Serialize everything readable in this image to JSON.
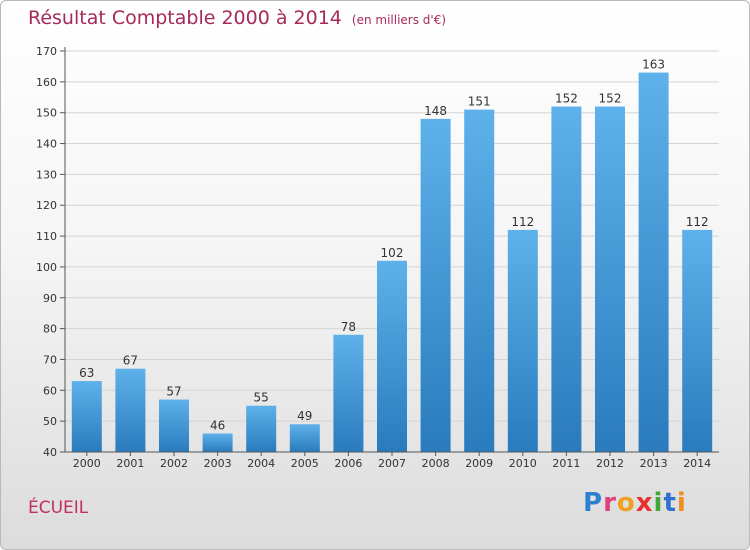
{
  "title": "Résultat Comptable 2000 à 2014",
  "subtitle": "(en milliers d'€)",
  "commune": "ÉCUEIL",
  "logo": {
    "letters": [
      "P",
      "r",
      "o",
      "x",
      "i",
      "t",
      "i"
    ],
    "colors": [
      "#2f7fd0",
      "#e0407a",
      "#f0a020",
      "#e83030",
      "#40a838",
      "#3070d0",
      "#f08c20"
    ]
  },
  "colors": {
    "bar_top": "#5eb1ea",
    "bar_bottom": "#2a7bbd",
    "grid": "#d4d4d4"
  },
  "chart_data": {
    "type": "bar",
    "title": "Résultat Comptable 2000 à 2014",
    "xlabel": "",
    "ylabel": "",
    "ylim": [
      40,
      170
    ],
    "yticks": [
      40,
      50,
      60,
      70,
      80,
      90,
      100,
      110,
      120,
      130,
      140,
      150,
      160,
      170
    ],
    "categories": [
      "2000",
      "2001",
      "2002",
      "2003",
      "2004",
      "2005",
      "2006",
      "2007",
      "2008",
      "2009",
      "2010",
      "2011",
      "2012",
      "2013",
      "2014"
    ],
    "values": [
      63,
      67,
      57,
      46,
      55,
      49,
      78,
      102,
      148,
      151,
      112,
      152,
      152,
      163,
      112
    ],
    "grid": true
  }
}
